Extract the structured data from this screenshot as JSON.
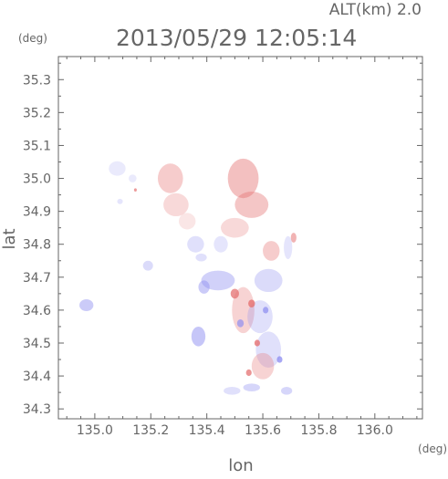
{
  "header": {
    "altitude_text": "ALT(km) 2.0",
    "datetime": "2013/05/29 12:05:14"
  },
  "axes": {
    "ylabel": "lat",
    "xlabel": "lon",
    "y_unit": "(deg)",
    "x_unit": "(deg)"
  },
  "colors": {
    "positive": "#e57373",
    "negative": "#8c8cf0",
    "frame": "#666666"
  },
  "chart_data": {
    "type": "scatter",
    "title": "2013/05/29 12:05:14",
    "subtitle": "ALT(km) 2.0",
    "xlabel": "lon",
    "ylabel": "lat",
    "x_unit": "(deg)",
    "y_unit": "(deg)",
    "xlim": [
      134.87,
      136.17
    ],
    "ylim": [
      34.27,
      35.37
    ],
    "xticks": [
      135.0,
      135.2,
      135.4,
      135.6,
      135.8,
      136.0
    ],
    "xtick_labels": [
      "135.0",
      "135.2",
      "135.4",
      "135.6",
      "135.8",
      "136.0"
    ],
    "yticks": [
      34.3,
      34.4,
      34.5,
      34.6,
      34.7,
      34.8,
      34.9,
      35.0,
      35.1,
      35.2,
      35.3
    ],
    "ytick_labels": [
      "34.3",
      "34.4",
      "34.5",
      "34.6",
      "34.7",
      "34.8",
      "34.9",
      "35.0",
      "35.1",
      "35.2",
      "35.3"
    ],
    "grid": false,
    "legend": "none",
    "patches": [
      {
        "lon": 135.08,
        "lat": 35.03,
        "rx": 0.03,
        "ry": 0.022,
        "sign": "negative",
        "intensity": 0.2
      },
      {
        "lon": 135.135,
        "lat": 35.0,
        "rx": 0.014,
        "ry": 0.012,
        "sign": "negative",
        "intensity": 0.2
      },
      {
        "lon": 135.09,
        "lat": 34.93,
        "rx": 0.01,
        "ry": 0.008,
        "sign": "negative",
        "intensity": 0.25
      },
      {
        "lon": 135.145,
        "lat": 34.965,
        "rx": 0.005,
        "ry": 0.005,
        "sign": "positive",
        "intensity": 0.8
      },
      {
        "lon": 135.27,
        "lat": 35.0,
        "rx": 0.045,
        "ry": 0.045,
        "sign": "positive",
        "intensity": 0.4
      },
      {
        "lon": 135.29,
        "lat": 34.92,
        "rx": 0.045,
        "ry": 0.035,
        "sign": "positive",
        "intensity": 0.3
      },
      {
        "lon": 135.33,
        "lat": 34.87,
        "rx": 0.03,
        "ry": 0.025,
        "sign": "positive",
        "intensity": 0.2
      },
      {
        "lon": 135.53,
        "lat": 35.0,
        "rx": 0.055,
        "ry": 0.06,
        "sign": "positive",
        "intensity": 0.5
      },
      {
        "lon": 135.56,
        "lat": 34.92,
        "rx": 0.06,
        "ry": 0.04,
        "sign": "positive",
        "intensity": 0.45
      },
      {
        "lon": 135.5,
        "lat": 34.85,
        "rx": 0.05,
        "ry": 0.03,
        "sign": "positive",
        "intensity": 0.3
      },
      {
        "lon": 135.36,
        "lat": 34.8,
        "rx": 0.03,
        "ry": 0.025,
        "sign": "negative",
        "intensity": 0.3
      },
      {
        "lon": 135.45,
        "lat": 34.8,
        "rx": 0.025,
        "ry": 0.025,
        "sign": "negative",
        "intensity": 0.25
      },
      {
        "lon": 135.38,
        "lat": 34.76,
        "rx": 0.02,
        "ry": 0.012,
        "sign": "negative",
        "intensity": 0.3
      },
      {
        "lon": 135.63,
        "lat": 34.78,
        "rx": 0.03,
        "ry": 0.03,
        "sign": "positive",
        "intensity": 0.4
      },
      {
        "lon": 135.69,
        "lat": 34.79,
        "rx": 0.015,
        "ry": 0.035,
        "sign": "negative",
        "intensity": 0.25
      },
      {
        "lon": 135.71,
        "lat": 34.82,
        "rx": 0.01,
        "ry": 0.015,
        "sign": "positive",
        "intensity": 0.6
      },
      {
        "lon": 135.19,
        "lat": 34.735,
        "rx": 0.018,
        "ry": 0.015,
        "sign": "negative",
        "intensity": 0.35
      },
      {
        "lon": 135.44,
        "lat": 34.69,
        "rx": 0.06,
        "ry": 0.03,
        "sign": "negative",
        "intensity": 0.45
      },
      {
        "lon": 135.39,
        "lat": 34.67,
        "rx": 0.02,
        "ry": 0.02,
        "sign": "negative",
        "intensity": 0.5
      },
      {
        "lon": 135.62,
        "lat": 34.69,
        "rx": 0.05,
        "ry": 0.035,
        "sign": "negative",
        "intensity": 0.35
      },
      {
        "lon": 135.53,
        "lat": 34.6,
        "rx": 0.04,
        "ry": 0.07,
        "sign": "positive",
        "intensity": 0.35
      },
      {
        "lon": 135.59,
        "lat": 34.58,
        "rx": 0.045,
        "ry": 0.05,
        "sign": "negative",
        "intensity": 0.3
      },
      {
        "lon": 135.5,
        "lat": 34.65,
        "rx": 0.015,
        "ry": 0.015,
        "sign": "positive",
        "intensity": 0.85
      },
      {
        "lon": 135.56,
        "lat": 34.62,
        "rx": 0.012,
        "ry": 0.012,
        "sign": "positive",
        "intensity": 0.9
      },
      {
        "lon": 135.61,
        "lat": 34.6,
        "rx": 0.01,
        "ry": 0.01,
        "sign": "negative",
        "intensity": 0.8
      },
      {
        "lon": 135.52,
        "lat": 34.56,
        "rx": 0.012,
        "ry": 0.012,
        "sign": "negative",
        "intensity": 0.75
      },
      {
        "lon": 134.97,
        "lat": 34.615,
        "rx": 0.025,
        "ry": 0.018,
        "sign": "negative",
        "intensity": 0.5
      },
      {
        "lon": 135.37,
        "lat": 34.52,
        "rx": 0.025,
        "ry": 0.03,
        "sign": "negative",
        "intensity": 0.55
      },
      {
        "lon": 135.62,
        "lat": 34.48,
        "rx": 0.045,
        "ry": 0.055,
        "sign": "negative",
        "intensity": 0.3
      },
      {
        "lon": 135.6,
        "lat": 34.43,
        "rx": 0.04,
        "ry": 0.04,
        "sign": "positive",
        "intensity": 0.35
      },
      {
        "lon": 135.58,
        "lat": 34.5,
        "rx": 0.01,
        "ry": 0.01,
        "sign": "positive",
        "intensity": 0.9
      },
      {
        "lon": 135.66,
        "lat": 34.45,
        "rx": 0.01,
        "ry": 0.01,
        "sign": "negative",
        "intensity": 0.85
      },
      {
        "lon": 135.55,
        "lat": 34.41,
        "rx": 0.01,
        "ry": 0.01,
        "sign": "positive",
        "intensity": 0.85
      },
      {
        "lon": 135.56,
        "lat": 34.365,
        "rx": 0.03,
        "ry": 0.012,
        "sign": "negative",
        "intensity": 0.4
      },
      {
        "lon": 135.49,
        "lat": 34.355,
        "rx": 0.03,
        "ry": 0.012,
        "sign": "negative",
        "intensity": 0.3
      },
      {
        "lon": 135.685,
        "lat": 34.355,
        "rx": 0.02,
        "ry": 0.012,
        "sign": "negative",
        "intensity": 0.4
      }
    ]
  }
}
